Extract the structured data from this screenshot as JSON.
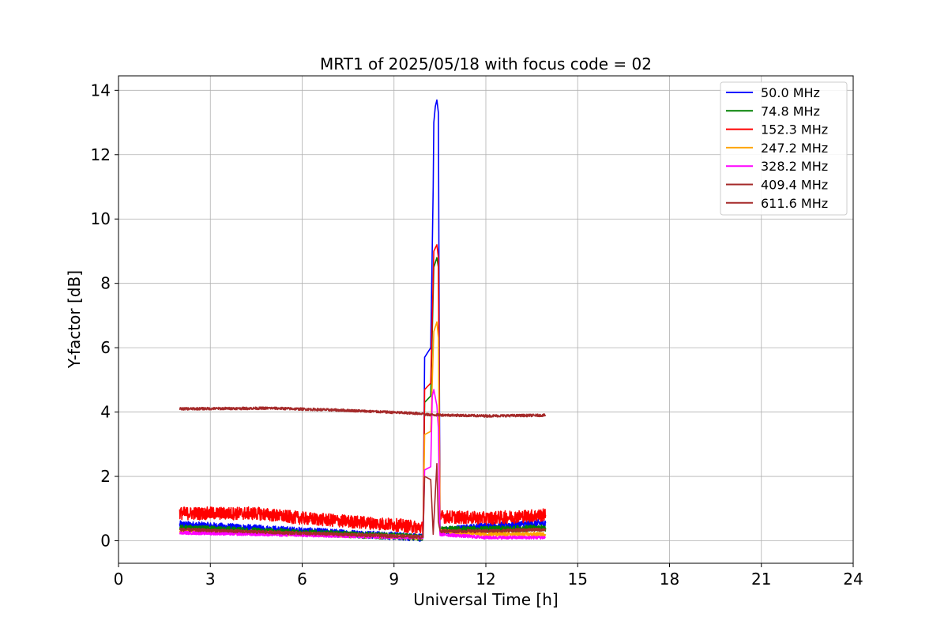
{
  "chart_data": {
    "type": "line",
    "title": "MRT1 of 2025/05/18 with focus code = 02",
    "xlabel": "Universal Time [h]",
    "ylabel": "Y-factor [dB]",
    "xlim": [
      0,
      24
    ],
    "ylim": [
      -0.7,
      14.45
    ],
    "x_ticks": [
      0,
      3,
      6,
      9,
      12,
      15,
      18,
      21,
      24
    ],
    "y_ticks": [
      0,
      2,
      4,
      6,
      8,
      10,
      12,
      14
    ],
    "grid": true,
    "legend_position": "top-right",
    "series": [
      {
        "name": " 50.0 MHz",
        "color": "#0000ff",
        "noise": 0.12,
        "points": [
          [
            2.0,
            0.5
          ],
          [
            9.95,
            0.1
          ],
          [
            10.0,
            5.7
          ],
          [
            10.2,
            6.0
          ],
          [
            10.28,
            11.0
          ],
          [
            10.3,
            13.0
          ],
          [
            10.35,
            13.5
          ],
          [
            10.4,
            13.7
          ],
          [
            10.45,
            13.3
          ],
          [
            10.5,
            0.5
          ],
          [
            10.52,
            0.3
          ],
          [
            12.0,
            0.45
          ],
          [
            13.95,
            0.55
          ]
        ]
      },
      {
        "name": " 74.8 MHz",
        "color": "#008000",
        "noise": 0.1,
        "points": [
          [
            2.0,
            0.4
          ],
          [
            9.95,
            0.1
          ],
          [
            10.0,
            4.3
          ],
          [
            10.2,
            4.5
          ],
          [
            10.3,
            8.5
          ],
          [
            10.4,
            8.8
          ],
          [
            10.45,
            8.5
          ],
          [
            10.5,
            0.4
          ],
          [
            10.52,
            0.35
          ],
          [
            12.0,
            0.35
          ],
          [
            13.95,
            0.4
          ]
        ]
      },
      {
        "name": " 152.3 MHz",
        "color": "#ff0000",
        "noise": 0.2,
        "points": [
          [
            2.0,
            0.85
          ],
          [
            4.5,
            0.85
          ],
          [
            6.0,
            0.7
          ],
          [
            9.0,
            0.5
          ],
          [
            9.95,
            0.4
          ],
          [
            10.0,
            4.7
          ],
          [
            10.2,
            4.9
          ],
          [
            10.3,
            9.0
          ],
          [
            10.4,
            9.2
          ],
          [
            10.45,
            8.8
          ],
          [
            10.5,
            0.75
          ],
          [
            12.0,
            0.7
          ],
          [
            13.95,
            0.8
          ]
        ]
      },
      {
        "name": " 247.2 MHz",
        "color": "#ffa500",
        "noise": 0.06,
        "points": [
          [
            2.0,
            0.3
          ],
          [
            9.95,
            0.1
          ],
          [
            10.0,
            3.3
          ],
          [
            10.2,
            3.4
          ],
          [
            10.3,
            6.5
          ],
          [
            10.4,
            6.8
          ],
          [
            10.45,
            6.3
          ],
          [
            10.5,
            0.3
          ],
          [
            12.0,
            0.2
          ],
          [
            13.95,
            0.2
          ]
        ]
      },
      {
        "name": " 328.2 MHz",
        "color": "#ff00ff",
        "noise": 0.05,
        "points": [
          [
            2.0,
            0.25
          ],
          [
            9.95,
            0.1
          ],
          [
            10.0,
            2.2
          ],
          [
            10.2,
            2.3
          ],
          [
            10.25,
            4.5
          ],
          [
            10.3,
            4.7
          ],
          [
            10.4,
            4.2
          ],
          [
            10.45,
            3.5
          ],
          [
            10.5,
            0.2
          ],
          [
            12.0,
            0.1
          ],
          [
            13.95,
            0.1
          ]
        ]
      },
      {
        "name": " 409.4 MHz",
        "color": "#a52a2a",
        "noise": 0.05,
        "points": [
          [
            2.0,
            0.35
          ],
          [
            9.95,
            0.12
          ],
          [
            10.0,
            2.0
          ],
          [
            10.2,
            1.9
          ],
          [
            10.28,
            0.2
          ],
          [
            10.4,
            2.4
          ],
          [
            10.45,
            0.6
          ],
          [
            10.5,
            0.3
          ],
          [
            12.0,
            0.3
          ],
          [
            13.95,
            0.35
          ]
        ]
      },
      {
        "name": " 611.6 MHz",
        "color": "#a52a2a",
        "noise": 0.04,
        "points": [
          [
            2.0,
            4.1
          ],
          [
            5.0,
            4.12
          ],
          [
            7.5,
            4.05
          ],
          [
            9.95,
            3.95
          ],
          [
            10.0,
            3.92
          ],
          [
            12.0,
            3.88
          ],
          [
            13.95,
            3.9
          ]
        ]
      }
    ]
  }
}
